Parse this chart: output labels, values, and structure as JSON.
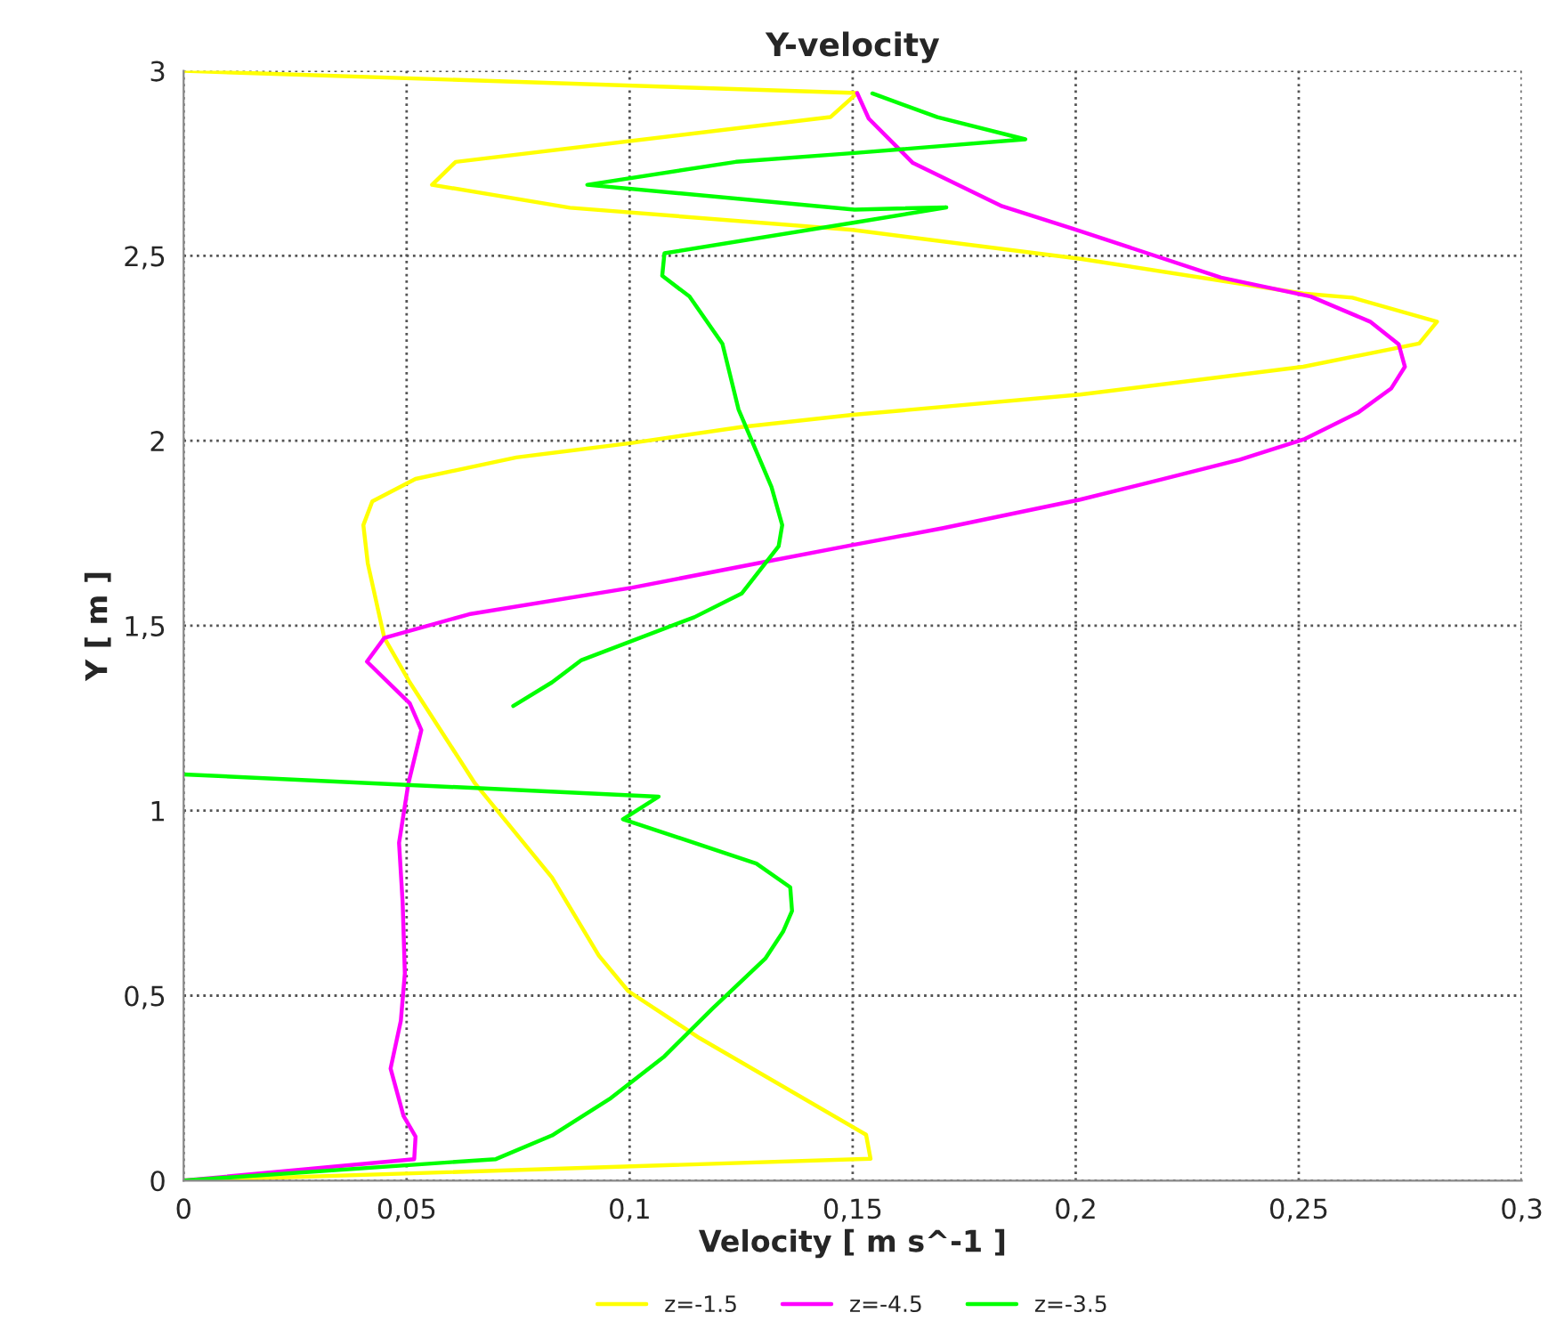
{
  "chart_data": {
    "type": "line",
    "title": "Y-velocity",
    "xlabel": "Velocity [ m s^-1 ]",
    "ylabel": "Y [ m ]",
    "xlim": [
      0,
      0.3
    ],
    "ylim": [
      0,
      3
    ],
    "xticks": [
      0,
      {
        "value": 0.05,
        "label": "0,05"
      },
      {
        "value": 0.1,
        "label": "0,1"
      },
      {
        "value": 0.15,
        "label": "0,15"
      },
      {
        "value": 0.2,
        "label": "0,2"
      },
      {
        "value": 0.25,
        "label": "0,25"
      },
      {
        "value": 0.3,
        "label": "0,3"
      }
    ],
    "yticks": [
      0,
      {
        "value": 0.5,
        "label": "0,5"
      },
      1,
      {
        "value": 1.5,
        "label": "1,5"
      },
      2,
      {
        "value": 2.5,
        "label": "2,5"
      },
      3
    ],
    "grid": true,
    "legend": "bottom",
    "marker": "none",
    "line_style": "solid",
    "series": [
      {
        "name": "z=-1.5",
        "color": "#ffff00",
        "x": [
          0,
          0.151,
          0.145,
          0.061,
          0.0557,
          0.0866,
          0.15,
          0.201,
          0.251,
          0.262,
          0.281,
          0.277,
          0.251,
          0.201,
          0.15,
          0.125,
          0.1005,
          0.0746,
          0.052,
          0.0423,
          0.0403,
          0.0413,
          0.045,
          0.0507,
          0.0653,
          0.0826,
          0.0931,
          0.0997,
          0.1157,
          0.153,
          0.154,
          0
        ],
        "values": [
          3.0,
          2.94,
          2.875,
          2.754,
          2.692,
          2.63,
          2.57,
          2.492,
          2.398,
          2.387,
          2.322,
          2.263,
          2.2,
          2.125,
          2.07,
          2.037,
          1.994,
          1.955,
          1.897,
          1.836,
          1.772,
          1.668,
          1.467,
          1.347,
          1.074,
          0.819,
          0.608,
          0.512,
          0.385,
          0.124,
          0.059,
          0
        ]
      },
      {
        "name": "z=-4.5",
        "color": "#ff00ff",
        "x": [
          0.151,
          0.1536,
          0.1635,
          0.1835,
          0.201,
          0.2326,
          0.2527,
          0.266,
          0.2724,
          0.2738,
          0.2707,
          0.2634,
          0.2514,
          0.2368,
          0.2194,
          0.201,
          0.1703,
          0.1504,
          0.1318,
          0.1006,
          0.064,
          0.045,
          0.0411,
          0.0507,
          0.0533,
          0.0504,
          0.0483,
          0.0491,
          0.0496,
          0.0487,
          0.0464,
          0.0493,
          0.052,
          0.0517,
          0
        ],
        "values": [
          2.94,
          2.871,
          2.751,
          2.634,
          2.567,
          2.441,
          2.39,
          2.322,
          2.261,
          2.2,
          2.141,
          2.077,
          2.005,
          1.949,
          1.896,
          1.841,
          1.764,
          1.719,
          1.676,
          1.603,
          1.531,
          1.467,
          1.403,
          1.29,
          1.218,
          1.074,
          0.913,
          0.753,
          0.56,
          0.432,
          0.303,
          0.175,
          0.119,
          0.058,
          0
        ]
      },
      {
        "name": "z=-3.5",
        "color": "#00ff00",
        "x": [
          0.1544,
          0.169,
          0.1887,
          0.1504,
          0.1238,
          0.0905,
          0.1504,
          0.171,
          0.1504,
          0.1078,
          0.1073,
          0.1134,
          0.1208,
          0.1244,
          0.1318,
          0.1342,
          0.1334,
          0.1251,
          0.1145,
          0.0892,
          0.0826,
          0.0739,
          null,
          0,
          0.1065,
          0.0985,
          0.1284,
          0.136,
          0.1364,
          0.1344,
          0.1304,
          0.1185,
          0.1078,
          0.0958,
          0.0826,
          0.07,
          0
        ],
        "values": [
          2.939,
          2.875,
          2.815,
          2.778,
          2.754,
          2.692,
          2.625,
          2.631,
          2.59,
          2.507,
          2.446,
          2.39,
          2.262,
          2.085,
          1.875,
          1.772,
          1.715,
          1.587,
          1.523,
          1.407,
          1.347,
          1.283,
          null,
          1.098,
          1.038,
          0.977,
          0.857,
          0.793,
          0.729,
          0.673,
          0.6,
          0.464,
          0.336,
          0.223,
          0.122,
          0.058,
          0
        ]
      }
    ]
  }
}
